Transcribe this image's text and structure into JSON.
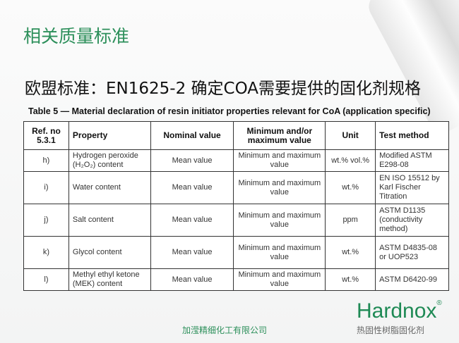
{
  "title": "相关质量标准",
  "subtitle": "欧盟标准：EN1625-2 确定COA需要提供的固化剂规格",
  "table": {
    "caption": "Table 5 — Material declaration of resin initiator properties relevant for CoA (application specific)",
    "headers": [
      "Ref. no 5.3.1",
      "Property",
      "Nominal value",
      "Minimum and/or maximum value",
      "Unit",
      "Test method"
    ],
    "rows": [
      [
        "h)",
        "Hydrogen peroxide (H₂O₂) content",
        "Mean value",
        "Minimum and maximum value",
        "wt.% vol.%",
        "Modified ASTM E298-08"
      ],
      [
        "i)",
        "Water content",
        "Mean value",
        "Minimum and maximum value",
        "wt.%",
        "EN ISO 15512 by Karl Fischer Titration"
      ],
      [
        "j)",
        "Salt content",
        "Mean value",
        "Minimum and maximum value",
        "ppm",
        "ASTM D1135 (conductivity method)"
      ],
      [
        "k)",
        "Glycol content",
        "Mean value",
        "Minimum and maximum value",
        "wt.%",
        "ASTM D4835-08 or UOP523"
      ],
      [
        "l)",
        "Methyl ethyl ketone (MEK) content",
        "Mean value",
        "Minimum and maximum value",
        "wt.%",
        "ASTM D6420-99"
      ]
    ]
  },
  "footer": {
    "company": "加滢精细化工有限公司",
    "logo": "Hardnox",
    "registered": "®",
    "tagline": "热固性树脂固化剂"
  },
  "colors": {
    "accent": "#2c8f5a"
  }
}
